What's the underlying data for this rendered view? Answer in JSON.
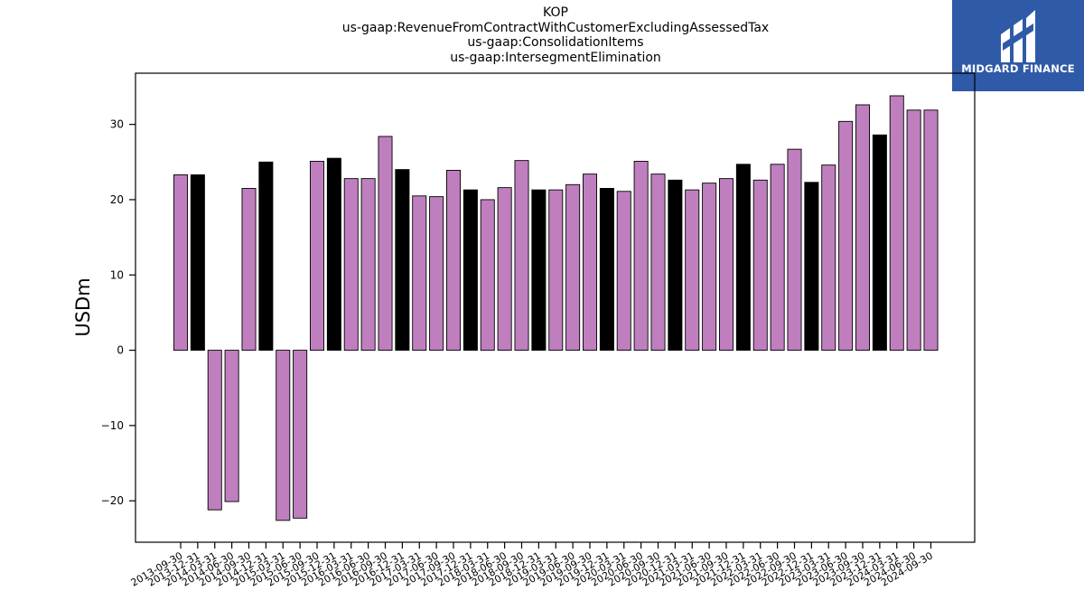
{
  "logo": {
    "text": "MIDGARD FINANCE",
    "background": "#2f5aa8"
  },
  "chart_data": {
    "type": "bar",
    "title": [
      "KOP",
      "us-gaap:RevenueFromContractWithCustomerExcludingAssessedTax",
      "us-gaap:ConsolidationItems",
      "us-gaap:IntersegmentElimination"
    ],
    "xlabel": "",
    "ylabel": "USDm",
    "ylim": [
      -25.5,
      36.8
    ],
    "yticks": [
      -20,
      -10,
      0,
      10,
      20,
      30
    ],
    "grid": false,
    "colors": {
      "default": "#bf7fbf",
      "highlight": "#000000"
    },
    "categories": [
      "2013-09-30",
      "2013-12-31",
      "2014-03-31",
      "2014-06-30",
      "2014-09-30",
      "2014-12-31",
      "2015-03-31",
      "2015-06-30",
      "2015-09-30",
      "2015-12-31",
      "2016-03-31",
      "2016-06-30",
      "2016-09-30",
      "2016-12-31",
      "2017-03-31",
      "2017-06-30",
      "2017-09-30",
      "2017-12-31",
      "2018-03-31",
      "2018-06-30",
      "2018-09-30",
      "2018-12-31",
      "2019-03-31",
      "2019-06-30",
      "2019-09-30",
      "2019-12-31",
      "2020-03-31",
      "2020-06-30",
      "2020-09-30",
      "2020-12-31",
      "2021-03-31",
      "2021-06-30",
      "2021-09-30",
      "2021-12-31",
      "2022-03-31",
      "2022-06-30",
      "2022-09-30",
      "2022-12-31",
      "2023-03-31",
      "2023-06-30",
      "2023-09-30",
      "2023-12-31",
      "2024-03-31",
      "2024-06-30",
      "2024-09-30"
    ],
    "values": [
      23.3,
      23.3,
      -21.2,
      -20.1,
      21.5,
      25.0,
      -22.6,
      -22.3,
      25.1,
      25.5,
      22.8,
      22.8,
      28.4,
      24.0,
      20.5,
      20.4,
      23.9,
      21.3,
      20.0,
      21.6,
      25.2,
      21.3,
      21.3,
      22.0,
      23.4,
      21.5,
      21.1,
      25.1,
      23.4,
      22.6,
      21.3,
      22.2,
      22.8,
      24.7,
      22.6,
      24.7,
      26.7,
      22.3,
      24.6,
      30.4,
      32.6,
      28.6,
      33.8,
      31.9,
      31.9
    ],
    "highlight": [
      false,
      true,
      false,
      false,
      false,
      true,
      false,
      false,
      false,
      true,
      false,
      false,
      false,
      true,
      false,
      false,
      false,
      true,
      false,
      false,
      false,
      true,
      false,
      false,
      false,
      true,
      false,
      false,
      false,
      true,
      false,
      false,
      false,
      true,
      false,
      false,
      false,
      true,
      false,
      false,
      false,
      true,
      false,
      false,
      false
    ]
  }
}
